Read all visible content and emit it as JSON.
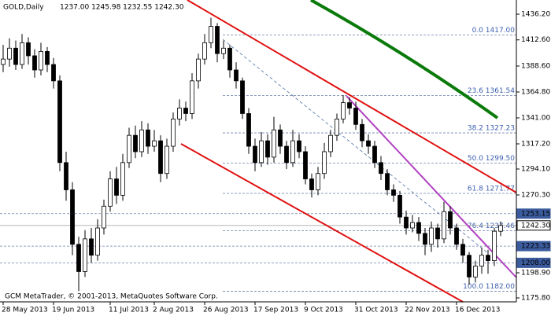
{
  "chart_data": {
    "type": "candlestick",
    "symbol": "GOLD,Daily",
    "quote": "1237.00 1245.98 1232.55 1242.30",
    "footer": "GCM MetaTrader, © 2001-2013, MetaQuotes Software Corp.",
    "categories": [
      "28 May 2013",
      null,
      null,
      null,
      null,
      null,
      null,
      null,
      "19 Jun 2013",
      null,
      null,
      null,
      null,
      null,
      null,
      null,
      null,
      "11 Jul 2013",
      null,
      null,
      null,
      null,
      null,
      null,
      "2 Aug 2013",
      null,
      null,
      null,
      null,
      null,
      null,
      null,
      "26 Aug 2013",
      null,
      null,
      null,
      null,
      null,
      null,
      null,
      "17 Sep 2013",
      null,
      null,
      null,
      null,
      null,
      null,
      null,
      "9 Oct 2013",
      null,
      null,
      null,
      null,
      null,
      null,
      null,
      "31 Oct 2013",
      null,
      null,
      null,
      null,
      null,
      null,
      null,
      "22 Nov 2013",
      null,
      null,
      null,
      null,
      null,
      null,
      null,
      "16 Dec 2013",
      null,
      null,
      null,
      null,
      null,
      null,
      null
    ],
    "open": [
      1390,
      1395,
      1405,
      1390,
      1410,
      1398,
      1385,
      1402,
      1390,
      1375,
      1300,
      1275,
      1225,
      1200,
      1230,
      1215,
      1240,
      1260,
      1285,
      1270,
      1300,
      1325,
      1310,
      1330,
      1315,
      1320,
      1290,
      1315,
      1340,
      1350,
      1345,
      1375,
      1395,
      1410,
      1425,
      1400,
      1405,
      1385,
      1375,
      1345,
      1315,
      1300,
      1320,
      1305,
      1330,
      1315,
      1300,
      1320,
      1310,
      1285,
      1275,
      1290,
      1310,
      1325,
      1340,
      1355,
      1350,
      1335,
      1320,
      1315,
      1300,
      1290,
      1275,
      1270,
      1250,
      1240,
      1245,
      1235,
      1225,
      1240,
      1230,
      1255,
      1240,
      1225,
      1215,
      1195,
      1205,
      1215,
      1210,
      1237
    ],
    "high": [
      1408,
      1414,
      1412,
      1418,
      1415,
      1404,
      1410,
      1406,
      1396,
      1380,
      1310,
      1282,
      1232,
      1238,
      1240,
      1248,
      1266,
      1292,
      1296,
      1308,
      1332,
      1334,
      1338,
      1336,
      1330,
      1325,
      1322,
      1346,
      1358,
      1356,
      1382,
      1400,
      1418,
      1433,
      1428,
      1412,
      1408,
      1392,
      1378,
      1350,
      1322,
      1328,
      1326,
      1342,
      1335,
      1320,
      1330,
      1326,
      1315,
      1290,
      1296,
      1318,
      1330,
      1345,
      1362,
      1360,
      1356,
      1340,
      1326,
      1320,
      1306,
      1294,
      1280,
      1274,
      1256,
      1252,
      1250,
      1240,
      1246,
      1244,
      1264,
      1260,
      1244,
      1230,
      1218,
      1210,
      1222,
      1220,
      1240,
      1245.98
    ],
    "low": [
      1383,
      1388,
      1385,
      1386,
      1390,
      1378,
      1380,
      1383,
      1368,
      1292,
      1265,
      1215,
      1182,
      1195,
      1208,
      1210,
      1234,
      1255,
      1262,
      1265,
      1295,
      1304,
      1305,
      1308,
      1310,
      1282,
      1285,
      1310,
      1334,
      1338,
      1340,
      1368,
      1390,
      1405,
      1392,
      1395,
      1378,
      1368,
      1340,
      1308,
      1292,
      1296,
      1298,
      1300,
      1308,
      1294,
      1296,
      1304,
      1280,
      1268,
      1270,
      1285,
      1305,
      1320,
      1336,
      1344,
      1330,
      1314,
      1308,
      1295,
      1284,
      1270,
      1264,
      1244,
      1234,
      1236,
      1228,
      1215,
      1218,
      1222,
      1226,
      1234,
      1220,
      1208,
      1188,
      1190,
      1198,
      1198,
      1205,
      1232.55
    ],
    "close": [
      1395,
      1405,
      1390,
      1410,
      1398,
      1385,
      1402,
      1390,
      1375,
      1300,
      1275,
      1225,
      1200,
      1230,
      1215,
      1240,
      1260,
      1285,
      1270,
      1300,
      1325,
      1310,
      1330,
      1315,
      1320,
      1290,
      1315,
      1340,
      1350,
      1345,
      1375,
      1395,
      1410,
      1425,
      1400,
      1405,
      1385,
      1375,
      1345,
      1315,
      1300,
      1320,
      1305,
      1330,
      1315,
      1300,
      1320,
      1310,
      1285,
      1275,
      1290,
      1310,
      1325,
      1340,
      1355,
      1350,
      1335,
      1320,
      1315,
      1300,
      1290,
      1275,
      1270,
      1250,
      1240,
      1245,
      1235,
      1225,
      1240,
      1230,
      1255,
      1240,
      1225,
      1215,
      1195,
      1205,
      1215,
      1210,
      1237,
      1242.3
    ],
    "up_color": "#ffffff",
    "down_color": "#000000",
    "ylim": [
      1172.2,
      1449.2
    ],
    "yticks": [
      {
        "value": 1436.2,
        "label": "1436.20"
      },
      {
        "value": 1412.6,
        "label": "1412.60"
      },
      {
        "value": 1388.6,
        "label": "1388.60"
      },
      {
        "value": 1364.8,
        "label": "1364.80"
      },
      {
        "value": 1341,
        "label": "1341.00"
      },
      {
        "value": 1317.2,
        "label": "1317.20"
      },
      {
        "value": 1294.1,
        "label": "1294.10"
      },
      {
        "value": 1270.3,
        "label": "1270.30"
      },
      {
        "value": 1198.9,
        "label": "1198.90"
      },
      {
        "value": 1175.8,
        "label": "1175.80"
      }
    ],
    "fib_levels": [
      {
        "value": 1417,
        "label": "0.0 1417.00"
      },
      {
        "value": 1361.54,
        "label": "23.6 1361.54"
      },
      {
        "value": 1327.23,
        "label": "38.2 1327.23"
      },
      {
        "value": 1299.5,
        "label": "50.0 1299.50"
      },
      {
        "value": 1271.77,
        "label": "61.8 1271.77"
      },
      {
        "value": 1237.46,
        "label": "76.4 1237.46"
      },
      {
        "value": 1182,
        "label": "100.0 1182.00"
      }
    ],
    "price_levels": [
      {
        "value": 1253.15,
        "label": "1253.15",
        "color": "#3b5b9d"
      },
      {
        "value": 1242.3,
        "label": "1242.30",
        "color": "#000000"
      },
      {
        "value": 1223.33,
        "label": "1223.33",
        "color": "#3b5b9d"
      },
      {
        "value": 1208,
        "label": "1208.00",
        "color": "#3b5b9d"
      }
    ]
  }
}
